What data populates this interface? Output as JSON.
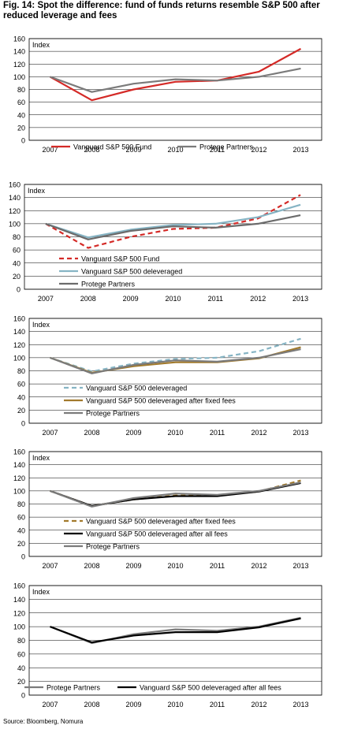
{
  "figure": {
    "title": "Fig. 14: Spot the difference: fund of funds returns resemble S&P 500 after reduced leverage and fees",
    "source": "Source: Bloomberg, Nomura"
  },
  "chart_data": [
    {
      "type": "line",
      "ylabel": "Index",
      "categories": [
        "2007",
        "2008",
        "2009",
        "2010",
        "2011",
        "2012",
        "2013"
      ],
      "ylim": [
        0,
        160
      ],
      "yticks": [
        0,
        20,
        40,
        60,
        80,
        100,
        120,
        140,
        160
      ],
      "grid": true,
      "legend_position": "bottom",
      "series": [
        {
          "name": "Vanguard S&P 500 Fund",
          "color": "#d42a27",
          "style": "solid",
          "values": [
            100,
            63,
            80,
            92,
            94,
            108,
            144
          ]
        },
        {
          "name": "Protege Partners",
          "color": "#7b7b7b",
          "style": "solid",
          "values": [
            100,
            76,
            89,
            96,
            94,
            100,
            113
          ]
        }
      ]
    },
    {
      "type": "line",
      "ylabel": "Index",
      "categories": [
        "2007",
        "2008",
        "2009",
        "2010",
        "2011",
        "2012",
        "2013"
      ],
      "ylim": [
        0,
        160
      ],
      "yticks": [
        0,
        20,
        40,
        60,
        80,
        100,
        120,
        140,
        160
      ],
      "grid": true,
      "legend_position": "bottom",
      "series": [
        {
          "name": "Vanguard S&P 500 Fund",
          "color": "#d42a27",
          "style": "dashed",
          "values": [
            100,
            63,
            80,
            92,
            94,
            108,
            144
          ]
        },
        {
          "name": "Vanguard S&P 500 deleveraged",
          "color": "#86b4c4",
          "style": "solid",
          "values": [
            100,
            79,
            91,
            98,
            100,
            110,
            129
          ]
        },
        {
          "name": "Protege Partners",
          "color": "#6b6b6b",
          "style": "solid",
          "values": [
            100,
            76,
            89,
            96,
            94,
            100,
            113
          ]
        }
      ]
    },
    {
      "type": "line",
      "ylabel": "Index",
      "categories": [
        "2007",
        "2008",
        "2009",
        "2010",
        "2011",
        "2012",
        "2013"
      ],
      "ylim": [
        0,
        160
      ],
      "yticks": [
        0,
        20,
        40,
        60,
        80,
        100,
        120,
        140,
        160
      ],
      "grid": true,
      "legend_position": "bottom",
      "series": [
        {
          "name": "Vanguard S&P 500 deleveraged",
          "color": "#86b4c4",
          "style": "dashed",
          "values": [
            100,
            79,
            91,
            98,
            100,
            110,
            129
          ]
        },
        {
          "name": "Vanguard S&P 500 deleveraged after fixed fees",
          "color": "#a27a2c",
          "style": "solid",
          "values": [
            100,
            77,
            87,
            93,
            93,
            99,
            116
          ]
        },
        {
          "name": "Protege Partners",
          "color": "#7b7b7b",
          "style": "solid",
          "values": [
            100,
            76,
            89,
            96,
            94,
            100,
            113
          ]
        }
      ]
    },
    {
      "type": "line",
      "ylabel": "Index",
      "categories": [
        "2007",
        "2008",
        "2009",
        "2010",
        "2011",
        "2012",
        "2013"
      ],
      "ylim": [
        0,
        160
      ],
      "yticks": [
        0,
        20,
        40,
        60,
        80,
        100,
        120,
        140,
        160
      ],
      "grid": true,
      "legend_position": "bottom",
      "series": [
        {
          "name": "Vanguard S&P 500 deleveraged after fixed fees",
          "color": "#a27a2c",
          "style": "dashed",
          "values": [
            100,
            77,
            87,
            93,
            93,
            99,
            116
          ]
        },
        {
          "name": "Vanguard S&P 500 deleveraged after all fees",
          "color": "#000000",
          "style": "solid",
          "values": [
            100,
            77,
            87,
            92,
            92,
            99,
            112
          ]
        },
        {
          "name": "Protege Partners",
          "color": "#7b7b7b",
          "style": "solid",
          "values": [
            100,
            76,
            89,
            96,
            94,
            100,
            113
          ]
        }
      ]
    },
    {
      "type": "line",
      "ylabel": "Index",
      "categories": [
        "2007",
        "2008",
        "2009",
        "2010",
        "2011",
        "2012",
        "2013"
      ],
      "ylim": [
        0,
        160
      ],
      "yticks": [
        0,
        20,
        40,
        60,
        80,
        100,
        120,
        140,
        160
      ],
      "grid": true,
      "legend_position": "bottom",
      "series": [
        {
          "name": "Protege Partners",
          "color": "#7b7b7b",
          "style": "solid",
          "values": [
            100,
            76,
            89,
            96,
            94,
            100,
            113
          ]
        },
        {
          "name": "Vanguard S&P 500 deleveraged after all fees",
          "color": "#000000",
          "style": "solid",
          "values": [
            100,
            77,
            87,
            92,
            92,
            99,
            112
          ]
        }
      ]
    }
  ]
}
